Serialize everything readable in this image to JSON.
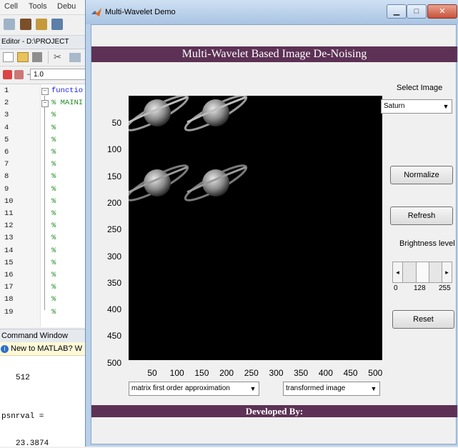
{
  "desktop": {
    "menu": [
      "Cell",
      "Tools",
      "Debu"
    ],
    "editor_title": "Editor - D:\\PROJECT",
    "zoom_value": "1.0",
    "code_lines": [
      {
        "num": "1",
        "text": "functio"
      },
      {
        "num": "2",
        "text": "% MAINI"
      },
      {
        "num": "3",
        "text": "%"
      },
      {
        "num": "4",
        "text": "%"
      },
      {
        "num": "5",
        "text": "%"
      },
      {
        "num": "6",
        "text": "%"
      },
      {
        "num": "7",
        "text": "%"
      },
      {
        "num": "8",
        "text": "%"
      },
      {
        "num": "9",
        "text": "%"
      },
      {
        "num": "10",
        "text": "%"
      },
      {
        "num": "11",
        "text": "%"
      },
      {
        "num": "12",
        "text": "%"
      },
      {
        "num": "13",
        "text": "%"
      },
      {
        "num": "14",
        "text": "%"
      },
      {
        "num": "15",
        "text": "%"
      },
      {
        "num": "16",
        "text": "%"
      },
      {
        "num": "17",
        "text": "%"
      },
      {
        "num": "18",
        "text": "%"
      },
      {
        "num": "19",
        "text": "%"
      }
    ],
    "command_window_title": "Command Window",
    "new_to_matlab": "New to MATLAB? W",
    "cmd_value_1": "512",
    "cmd_var": "psnrval =",
    "cmd_value_2": "23.3874"
  },
  "figure": {
    "window_title": "Multi-Wavelet Demo",
    "heading": "Multi-Wavelet Based Image De-Noising",
    "footer": "Developed By:",
    "y_ticks": [
      "50",
      "100",
      "150",
      "200",
      "250",
      "300",
      "350",
      "400",
      "450",
      "500"
    ],
    "x_ticks": [
      "50",
      "100",
      "150",
      "200",
      "250",
      "300",
      "350",
      "400",
      "450",
      "500"
    ],
    "select_image_label": "Select Image",
    "select_image_value": "Saturn",
    "normalize_label": "Normalize",
    "refresh_label": "Refresh",
    "brightness_label": "Brightness level",
    "slider_min": "0",
    "slider_mid": "128",
    "slider_max": "255",
    "slider_value": 128,
    "reset_label": "Reset",
    "approx_popup_value": "matrix first order approximation",
    "transform_popup_value": "transformed image"
  },
  "colors": {
    "banner": "#5d3155",
    "axes_bg": "#000000",
    "window_frame": "#b9d1ea"
  }
}
